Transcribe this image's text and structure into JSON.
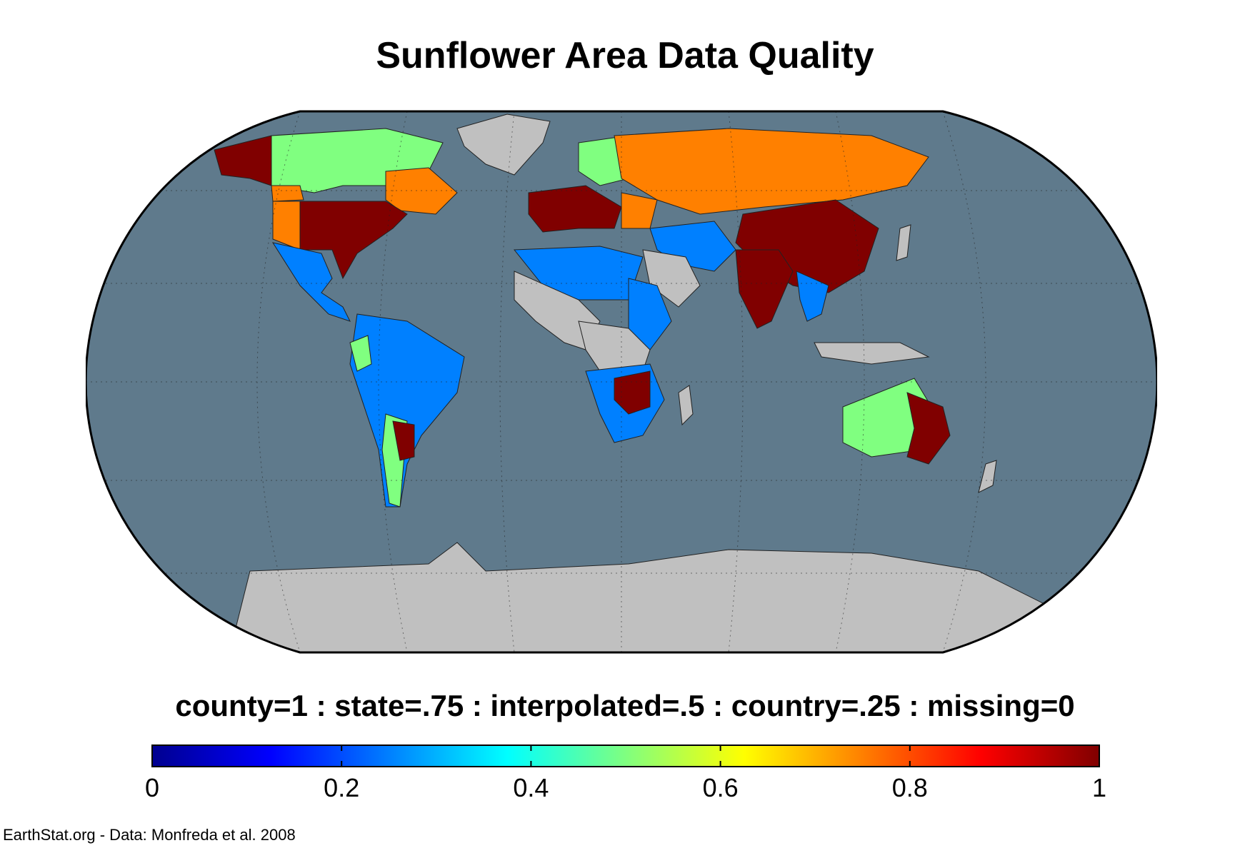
{
  "title": "Sunflower Area Data Quality",
  "legend": {
    "text": "county=1 : state=.75 : interpolated=.5 : country=.25 : missing=0",
    "ticks": [
      "0",
      "0.2",
      "0.4",
      "0.6",
      "0.8",
      "1"
    ],
    "range": [
      0,
      1
    ],
    "colormap": "jet"
  },
  "credit": "EarthStat.org - Data: Monfreda et al. 2008",
  "colors": {
    "ocean": "#5f7a8c",
    "no_data_land": "#c0c0c0",
    "county": "#800000",
    "state": "#ff8000",
    "interpolated": "#80ff80",
    "country": "#0080ff",
    "outline": "#000000"
  },
  "map": {
    "projection": "Robinson",
    "graticule": "dotted"
  }
}
